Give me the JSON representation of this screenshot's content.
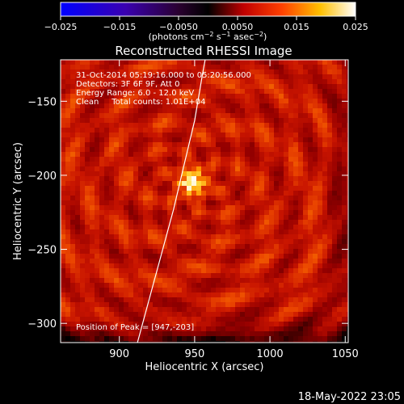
{
  "colorbar": {
    "ticks": [
      "−0.025",
      "−0.015",
      "−0.0050",
      "0.0050",
      "0.015",
      "0.025"
    ],
    "tick_values": [
      -0.025,
      -0.015,
      -0.005,
      0.005,
      0.015,
      0.025
    ],
    "range": [
      -0.025,
      0.025
    ],
    "units_prefix": "(photons cm",
    "units_exp1": "−2",
    "units_mid": " s",
    "units_exp2": "−1",
    "units_mid2": " asec",
    "units_exp3": "−2",
    "units_suffix": ")"
  },
  "image": {
    "title": "Reconstructed RHESSI Image",
    "info_lines": [
      "31-Oct-2014 05:19:16.000 to 05:20:56.000",
      "Detectors: 3F 6F 9F, Att 0",
      "Energy Range: 6.0 - 12.0 keV",
      "Clean     Total counts: 1.01E+04"
    ],
    "peak_text": "Position of Peak = [947,-203]",
    "peak": {
      "x": 947,
      "y": -203
    }
  },
  "axes": {
    "xlabel": "Heliocentric X (arcsec)",
    "ylabel": "Heliocentric Y (arcsec)",
    "xlim": [
      861,
      1052
    ],
    "ylim": [
      -313,
      -122
    ],
    "xticks": [
      "900",
      "950",
      "1000",
      "1050"
    ],
    "xtick_values": [
      900,
      950,
      1000,
      1050
    ],
    "yticks": [
      "−150",
      "−200",
      "−250",
      "−300"
    ],
    "ytick_values": [
      -150,
      -200,
      -250,
      -300
    ]
  },
  "limb_curve": {
    "points": [
      [
        912,
        -313
      ],
      [
        920,
        -283
      ],
      [
        928,
        -253
      ],
      [
        936,
        -223
      ],
      [
        943,
        -193
      ],
      [
        950,
        -163
      ],
      [
        955,
        -133
      ],
      [
        957,
        -122
      ]
    ]
  },
  "footer": {
    "timestamp": "18-May-2022 23:05"
  },
  "colors": {
    "background": "#000000",
    "colormap": [
      "#0000ff",
      "#5a0070",
      "#000000",
      "#e00000",
      "#ff7a00",
      "#ffd800",
      "#ffffff"
    ]
  }
}
